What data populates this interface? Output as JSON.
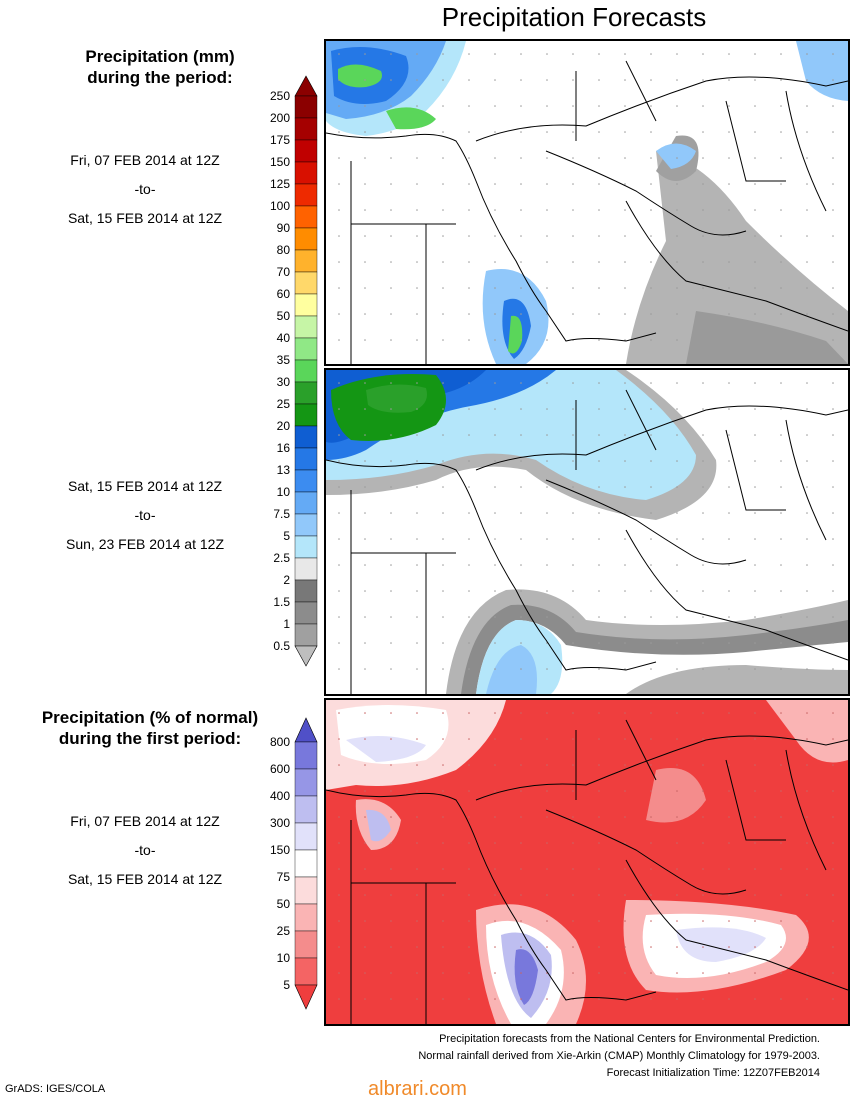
{
  "title": "Precipitation Forecasts",
  "panel1": {
    "heading_line1": "Precipitation (mm)",
    "heading_line2": "during the period:",
    "start": "Fri, 07 FEB 2014 at 12Z",
    "sep": "-to-",
    "end": "Sat, 15 FEB 2014 at 12Z"
  },
  "panel2": {
    "start": "Sat, 15 FEB 2014 at 12Z",
    "sep": "-to-",
    "end": "Sun, 23 FEB 2014 at 12Z"
  },
  "panel3": {
    "heading_line1": "Precipitation (% of normal)",
    "heading_line2": "during the first period:",
    "start": "Fri, 07 FEB 2014 at 12Z",
    "sep": "-to-",
    "end": "Sat, 15 FEB 2014 at 12Z"
  },
  "mm_scale": {
    "labels": [
      "250",
      "200",
      "175",
      "150",
      "125",
      "100",
      "90",
      "80",
      "70",
      "60",
      "50",
      "40",
      "35",
      "30",
      "25",
      "20",
      "16",
      "13",
      "10",
      "7.5",
      "5",
      "2.5",
      "2",
      "1.5",
      "1",
      "0.5"
    ],
    "colors": [
      "#8b0000",
      "#a50000",
      "#c00000",
      "#d81000",
      "#ee2a00",
      "#ff6200",
      "#ff8c00",
      "#ffb22c",
      "#ffd86a",
      "#ffff9f",
      "#c6f5a6",
      "#90e886",
      "#5ad65a",
      "#2aa02a",
      "#149614",
      "#0f5ed2",
      "#2578e6",
      "#3c8cf0",
      "#64aaf5",
      "#91c8fa",
      "#b4e6fa",
      "#e8e8e8",
      "#787878",
      "#8c8c8c",
      "#a0a0a0",
      "#bebebe"
    ]
  },
  "pct_scale": {
    "labels": [
      "800",
      "600",
      "400",
      "300",
      "150",
      "75",
      "50",
      "25",
      "10",
      "5"
    ],
    "colors": [
      "#5050c8",
      "#7878dc",
      "#9696e6",
      "#bebef0",
      "#e1e1fa",
      "#ffffff",
      "#fcdcdc",
      "#fab4b4",
      "#f48c8c",
      "#f46464",
      "#ef3e3e"
    ]
  },
  "footer": {
    "line1": "Precipitation forecasts from the National Centers for Environmental Prediction.",
    "line2": "Normal rainfall derived from Xie-Arkin (CMAP) Monthly Climatology for 1979-2003.",
    "line3": "Forecast Initialization Time: 12Z07FEB2014"
  },
  "credit": "GrADS: IGES/COLA",
  "watermark": "albrari.com"
}
